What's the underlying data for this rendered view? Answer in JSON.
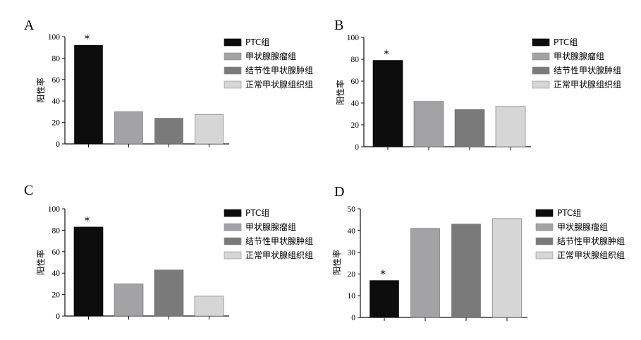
{
  "chart_data": [
    {
      "type": "bar",
      "panel": "A",
      "categories": [
        "PTC组",
        "甲状腺腺瘤组",
        "结节性甲状腺肿组",
        "正常甲状腺组织组"
      ],
      "values": [
        92,
        30,
        24,
        27.5
      ],
      "ylabel": "阳性率",
      "ylim": [
        0,
        100
      ],
      "yticks": [
        0,
        20,
        40,
        60,
        80,
        100
      ],
      "annotations": [
        {
          "category_index": 0,
          "text": "*"
        }
      ],
      "legend": "right",
      "colors": [
        "#0d0d0d",
        "#a3a3a6",
        "#7a7a7a",
        "#d6d6d6"
      ]
    },
    {
      "type": "bar",
      "panel": "B",
      "categories": [
        "PTC组",
        "甲状腺腺瘤组",
        "结节性甲状腺肿组",
        "正常甲状腺组织组"
      ],
      "values": [
        79,
        41.5,
        34,
        37
      ],
      "ylabel": "阳性率",
      "ylim": [
        0,
        100
      ],
      "yticks": [
        0,
        20,
        40,
        60,
        80,
        100
      ],
      "annotations": [
        {
          "category_index": 0,
          "text": "*"
        }
      ],
      "legend": "right",
      "colors": [
        "#0d0d0d",
        "#a3a3a6",
        "#7a7a7a",
        "#d6d6d6"
      ]
    },
    {
      "type": "bar",
      "panel": "C",
      "categories": [
        "PTC组",
        "甲状腺腺瘤组",
        "结节性甲状腺肿组",
        "正常甲状腺组织组"
      ],
      "values": [
        83,
        30,
        43,
        18.5
      ],
      "ylabel": "阳性率",
      "ylim": [
        0,
        100
      ],
      "yticks": [
        0,
        20,
        40,
        60,
        80,
        100
      ],
      "annotations": [
        {
          "category_index": 0,
          "text": "*"
        }
      ],
      "legend": "right",
      "colors": [
        "#0d0d0d",
        "#a3a3a6",
        "#7a7a7a",
        "#d6d6d6"
      ]
    },
    {
      "type": "bar",
      "panel": "D",
      "categories": [
        "PTC组",
        "甲状腺腺瘤组",
        "结节性甲状腺肿组",
        "正常甲状腺组织组"
      ],
      "values": [
        17,
        41,
        43,
        45.5
      ],
      "ylabel": "阳性率",
      "ylim": [
        0,
        50
      ],
      "yticks": [
        0,
        10,
        20,
        30,
        40,
        50
      ],
      "annotations": [
        {
          "category_index": 0,
          "text": "*"
        }
      ],
      "legend": "right",
      "colors": [
        "#0d0d0d",
        "#a3a3a6",
        "#7a7a7a",
        "#d6d6d6"
      ]
    }
  ]
}
